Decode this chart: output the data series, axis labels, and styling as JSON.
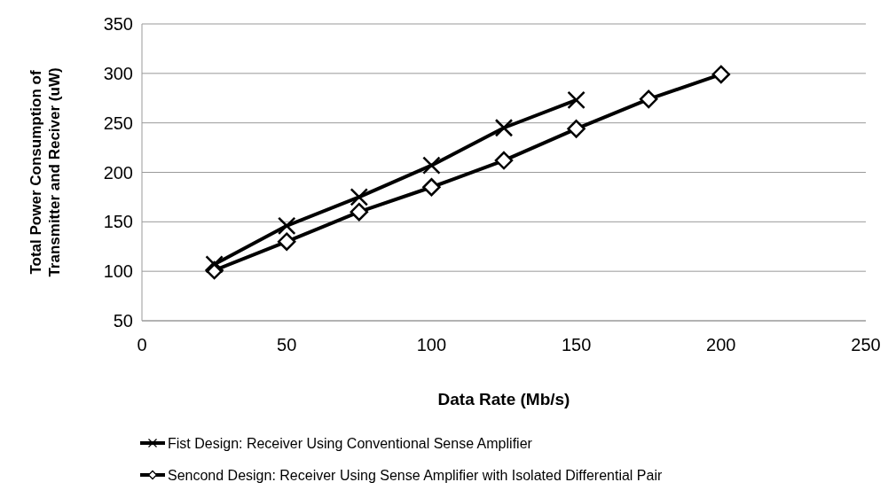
{
  "chart_data": {
    "type": "line",
    "xlabel": "Data Rate (Mb/s)",
    "ylabel": "Total Power Consumption of Transmitter and Reciver (uW)",
    "x": [
      25,
      50,
      75,
      100,
      125,
      150,
      175,
      200
    ],
    "series": [
      {
        "name": "Fist Design: Receiver Using Conventional Sense Amplifier",
        "color": "#000000",
        "marker": "cross",
        "values": [
          107,
          146,
          175,
          207,
          245,
          273,
          null,
          null
        ]
      },
      {
        "name": "Sencond Design: Receiver Using Sense Amplifier with Isolated Differential Pair",
        "color": "#000000",
        "marker": "diamond",
        "values": [
          101,
          130,
          160,
          185,
          212,
          244,
          274,
          299
        ]
      }
    ],
    "xlim": [
      0,
      250
    ],
    "xticks": [
      0,
      50,
      100,
      150,
      200,
      250
    ],
    "ylim": [
      50,
      350
    ],
    "yticks": [
      50,
      100,
      150,
      200,
      250,
      300,
      350
    ],
    "grid": "y",
    "legend": "bottom",
    "line_style": "solid"
  }
}
